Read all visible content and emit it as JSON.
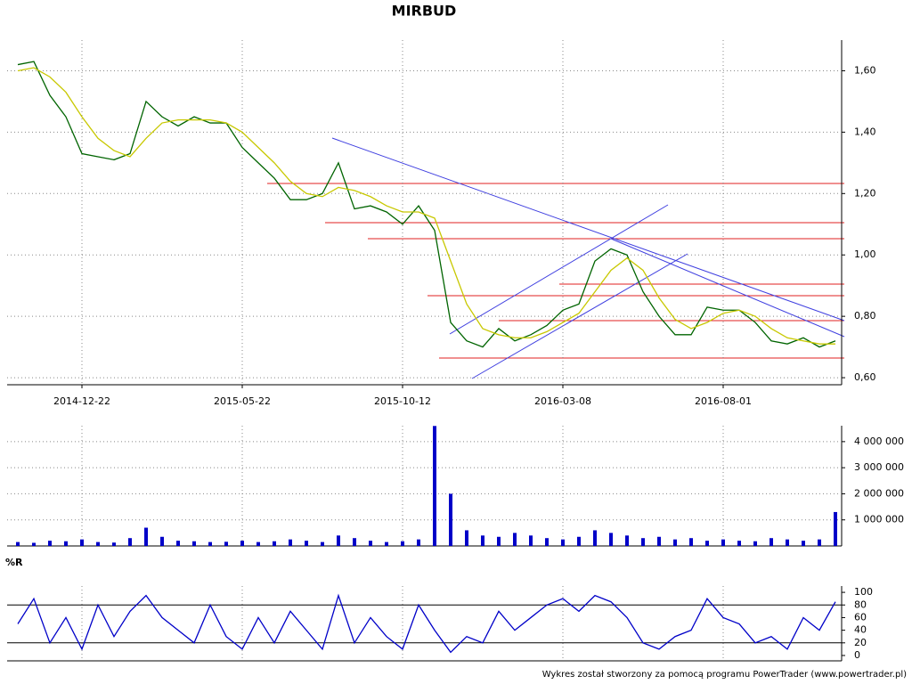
{
  "chart_data": [
    {
      "type": "line",
      "title": "MIRBUD",
      "categories": [
        null,
        null,
        null,
        null,
        "2014-12-22",
        null,
        null,
        null,
        null,
        null,
        null,
        null,
        null,
        null,
        "2015-05-22",
        null,
        null,
        null,
        null,
        null,
        null,
        null,
        null,
        null,
        "2015-10-12",
        null,
        null,
        null,
        null,
        null,
        null,
        null,
        null,
        null,
        "2016-03-08",
        null,
        null,
        null,
        null,
        null,
        null,
        null,
        null,
        null,
        "2016-08-01",
        null,
        null,
        null,
        null,
        null,
        null,
        null
      ],
      "series": [
        {
          "color": "#006400",
          "values": [
            1.62,
            1.63,
            1.52,
            1.45,
            1.33,
            1.32,
            1.31,
            1.33,
            1.5,
            1.45,
            1.42,
            1.45,
            1.43,
            1.43,
            1.35,
            1.3,
            1.25,
            1.18,
            1.18,
            1.2,
            1.3,
            1.15,
            1.16,
            1.14,
            1.1,
            1.16,
            1.08,
            0.78,
            0.72,
            0.7,
            0.76,
            0.72,
            0.74,
            0.77,
            0.82,
            0.84,
            0.98,
            1.02,
            1.0,
            0.88,
            0.8,
            0.74,
            0.74,
            0.83,
            0.82,
            0.82,
            0.78,
            0.72,
            0.71,
            0.73,
            0.7,
            0.72
          ]
        },
        {
          "color": "#c8c800",
          "values": [
            1.6,
            1.61,
            1.58,
            1.53,
            1.45,
            1.38,
            1.34,
            1.32,
            1.38,
            1.43,
            1.44,
            1.44,
            1.44,
            1.43,
            1.4,
            1.35,
            1.3,
            1.24,
            1.2,
            1.19,
            1.22,
            1.21,
            1.19,
            1.16,
            1.14,
            1.14,
            1.12,
            0.98,
            0.84,
            0.76,
            0.74,
            0.73,
            0.73,
            0.75,
            0.78,
            0.81,
            0.88,
            0.95,
            0.99,
            0.95,
            0.86,
            0.79,
            0.76,
            0.78,
            0.81,
            0.82,
            0.8,
            0.76,
            0.73,
            0.72,
            0.71,
            0.71
          ]
        }
      ],
      "ylim": [
        0.577,
        1.7
      ],
      "yticks": [
        {
          "value": 0.6,
          "label": "0,60"
        },
        {
          "value": 0.8,
          "label": "0,80"
        },
        {
          "value": 1.0,
          "label": "1,00"
        },
        {
          "value": 1.2,
          "label": "1,20"
        },
        {
          "value": 1.4,
          "label": "1,40"
        },
        {
          "value": 1.6,
          "label": "1,60"
        }
      ],
      "grid": true
    },
    {
      "type": "bar",
      "color": "#0000c8",
      "values": [
        150000,
        120000,
        200000,
        180000,
        250000,
        150000,
        130000,
        300000,
        700000,
        350000,
        200000,
        180000,
        150000,
        160000,
        200000,
        150000,
        180000,
        250000,
        200000,
        150000,
        400000,
        300000,
        200000,
        150000,
        180000,
        250000,
        4600000,
        2000000,
        600000,
        400000,
        350000,
        500000,
        400000,
        300000,
        250000,
        350000,
        600000,
        500000,
        400000,
        300000,
        350000,
        250000,
        300000,
        200000,
        250000,
        200000,
        180000,
        300000,
        250000,
        200000,
        250000,
        1300000
      ],
      "ylim": [
        0,
        4610000
      ],
      "yticks": [
        {
          "value": 1000000,
          "label": "1 000 000"
        },
        {
          "value": 2000000,
          "label": "2 000 000"
        },
        {
          "value": 3000000,
          "label": "3 000 000"
        },
        {
          "value": 4000000,
          "label": "4 000 000"
        }
      ],
      "grid": true
    },
    {
      "type": "line",
      "title": "%R",
      "series": [
        {
          "color": "#0000c8",
          "values": [
            50,
            90,
            20,
            60,
            10,
            80,
            30,
            70,
            95,
            60,
            40,
            20,
            80,
            30,
            10,
            60,
            20,
            70,
            40,
            10,
            95,
            20,
            60,
            30,
            10,
            80,
            40,
            5,
            30,
            20,
            70,
            40,
            60,
            80,
            90,
            70,
            95,
            85,
            60,
            20,
            10,
            30,
            40,
            90,
            60,
            50,
            20,
            30,
            10,
            60,
            40,
            85
          ]
        }
      ],
      "ylim": [
        -8.5,
        110
      ],
      "yticks": [
        0,
        20,
        40,
        60,
        80,
        100
      ],
      "hlines": [
        20,
        80
      ]
    }
  ],
  "footer": "Wykres został stworzony za pomocą programu PowerTrader (www.powertrader.pl)"
}
